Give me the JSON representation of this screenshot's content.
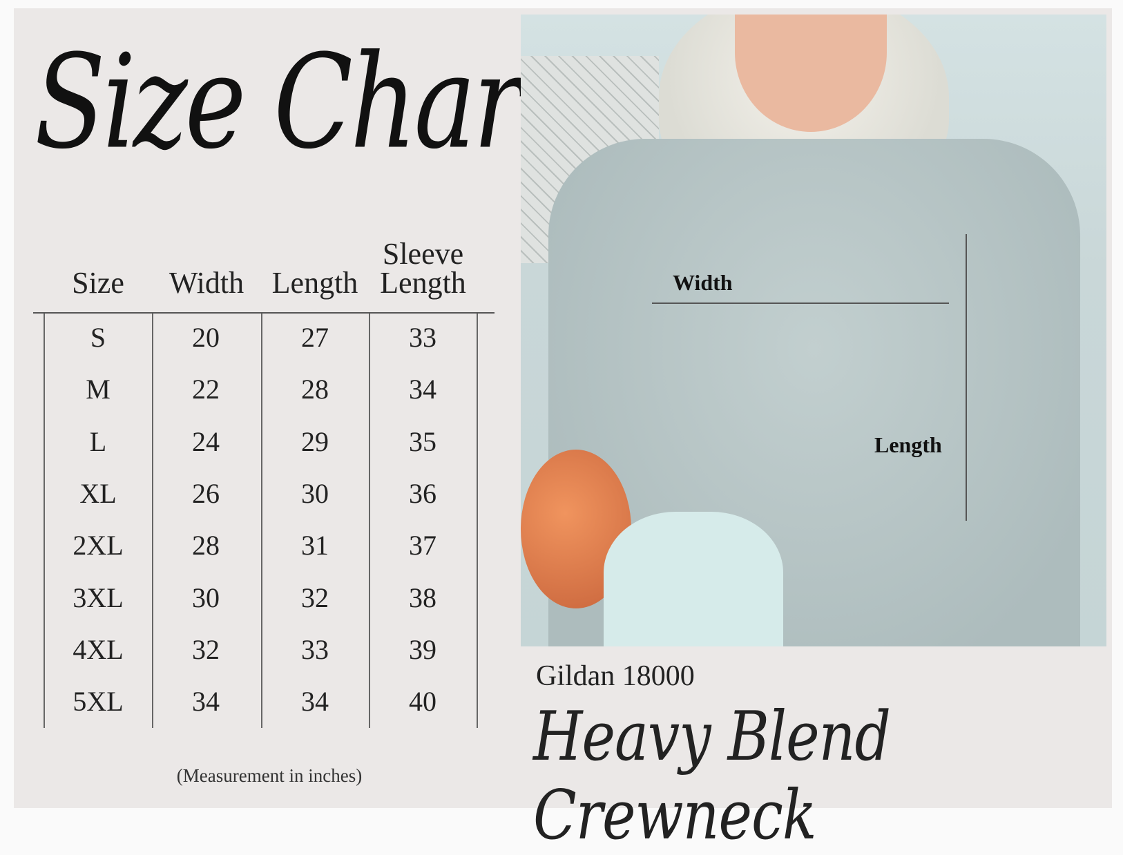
{
  "title": "Size Chart",
  "table": {
    "headers": [
      "Size",
      "Width",
      "Length",
      "Sleeve Length"
    ],
    "header_sleeve_top": "Sleeve",
    "header_sleeve_bottom": "Length",
    "rows": [
      [
        "S",
        "20",
        "27",
        "33"
      ],
      [
        "M",
        "22",
        "28",
        "34"
      ],
      [
        "L",
        "24",
        "29",
        "35"
      ],
      [
        "XL",
        "26",
        "30",
        "36"
      ],
      [
        "2XL",
        "28",
        "31",
        "37"
      ],
      [
        "3XL",
        "30",
        "32",
        "38"
      ],
      [
        "4XL",
        "32",
        "33",
        "39"
      ],
      [
        "5XL",
        "34",
        "34",
        "40"
      ]
    ]
  },
  "note": "(Measurement in inches)",
  "photo": {
    "width_label": "Width",
    "length_label": "Length"
  },
  "brand": "Gildan 18000",
  "product": "Heavy Blend Crewneck"
}
